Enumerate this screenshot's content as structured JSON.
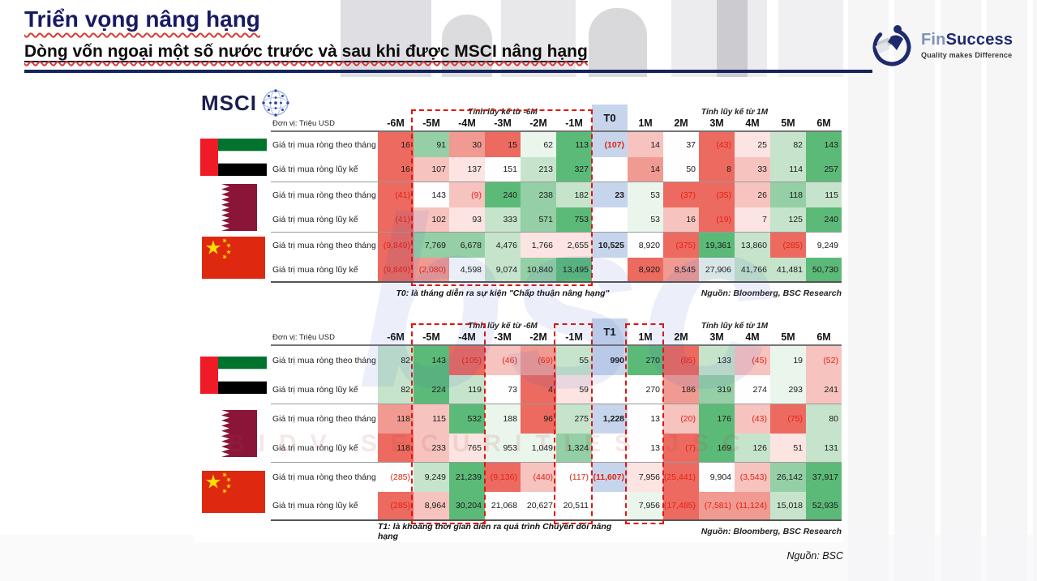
{
  "header": {
    "title": "Triển vọng nâng hạng",
    "subtitle": "Dòng vốn ngoại một số nước trước và sau khi được MSCI nâng hạng"
  },
  "brand": {
    "fin": "Fin",
    "success": "Success",
    "tagline": "Quality makes Difference"
  },
  "msci_logo_text": "MSCI",
  "watermarks": {
    "big": "bsc",
    "band": "BIDV SECURITIES JSC"
  },
  "slide_source": "Nguồn: BSC",
  "palette": {
    "R3": "#ec6a60",
    "R2": "#f09a92",
    "R1": "#f7c3bf",
    "R0": "#fbe4e2",
    "W": "#fdfefd",
    "G0": "#eaf5ec",
    "G1": "#c6e4cc",
    "G2": "#94cfa5",
    "G3": "#5cba78",
    "B": "#c7d5ec"
  },
  "tables": [
    {
      "id": "t0",
      "unit_label": "Đơn vị: Triệu USD",
      "group_left_label": "Tính lũy kế từ -6M",
      "group_right_label": "Tính lũy kế từ 1M",
      "columns": [
        "-6M",
        "-5M",
        "-4M",
        "-3M",
        "-2M",
        "-1M",
        "T0",
        "1M",
        "2M",
        "3M",
        "4M",
        "5M",
        "6M"
      ],
      "event_col_index": 6,
      "footnote": "T0: là tháng diễn ra sự kiện \"Chấp thuận nâng hạng\"",
      "source": "Nguồn: Bloomberg, BSC Research",
      "dash_boxes": [
        [
          1,
          5
        ]
      ],
      "countries": [
        {
          "name": "UAE",
          "flag": "uae",
          "rows": [
            {
              "label": "Giá trị mua ròng theo tháng",
              "cells": [
                [
                  "16",
                  "R3"
                ],
                [
                  "91",
                  "G2"
                ],
                [
                  "30",
                  "R2"
                ],
                [
                  "15",
                  "R3"
                ],
                [
                  "62",
                  "G0"
                ],
                [
                  "113",
                  "G3"
                ],
                [
                  "(107)",
                  "B"
                ],
                [
                  "14",
                  "R1"
                ],
                [
                  "37",
                  "W"
                ],
                [
                  "(43)",
                  "R3"
                ],
                [
                  "25",
                  "R0"
                ],
                [
                  "82",
                  "G1"
                ],
                [
                  "143",
                  "G3"
                ]
              ]
            },
            {
              "label": "Giá trị mua ròng lũy kế",
              "cells": [
                [
                  "16",
                  "R3"
                ],
                [
                  "107",
                  "R1"
                ],
                [
                  "137",
                  "R0"
                ],
                [
                  "151",
                  "W"
                ],
                [
                  "213",
                  "G1"
                ],
                [
                  "327",
                  "G3"
                ],
                [
                  "",
                  "W"
                ],
                [
                  "14",
                  "R2"
                ],
                [
                  "50",
                  "W"
                ],
                [
                  "8",
                  "R3"
                ],
                [
                  "33",
                  "R1"
                ],
                [
                  "114",
                  "G1"
                ],
                [
                  "257",
                  "G3"
                ]
              ]
            }
          ]
        },
        {
          "name": "Qatar",
          "flag": "qatar",
          "rows": [
            {
              "label": "Giá trị mua ròng theo tháng",
              "cells": [
                [
                  "(41)",
                  "R3"
                ],
                [
                  "143",
                  "W"
                ],
                [
                  "(9)",
                  "R1"
                ],
                [
                  "240",
                  "G3"
                ],
                [
                  "238",
                  "G2"
                ],
                [
                  "182",
                  "G1"
                ],
                [
                  "23",
                  "B"
                ],
                [
                  "53",
                  "G0"
                ],
                [
                  "(37)",
                  "R3"
                ],
                [
                  "(35)",
                  "R3"
                ],
                [
                  "26",
                  "R1"
                ],
                [
                  "118",
                  "G2"
                ],
                [
                  "115",
                  "G1"
                ]
              ]
            },
            {
              "label": "Giá trị mua ròng lũy kế",
              "cells": [
                [
                  "(41)",
                  "R3"
                ],
                [
                  "102",
                  "R1"
                ],
                [
                  "93",
                  "R0"
                ],
                [
                  "333",
                  "G1"
                ],
                [
                  "571",
                  "G2"
                ],
                [
                  "753",
                  "G3"
                ],
                [
                  "",
                  "W"
                ],
                [
                  "53",
                  "G0"
                ],
                [
                  "16",
                  "R1"
                ],
                [
                  "(19)",
                  "R3"
                ],
                [
                  "7",
                  "R0"
                ],
                [
                  "125",
                  "G1"
                ],
                [
                  "240",
                  "G3"
                ]
              ]
            }
          ]
        },
        {
          "name": "China",
          "flag": "china",
          "rows": [
            {
              "label": "Giá trị mua ròng theo tháng",
              "cells": [
                [
                  "(9,849)",
                  "R3"
                ],
                [
                  "7,769",
                  "G2"
                ],
                [
                  "6,678",
                  "G2"
                ],
                [
                  "4,476",
                  "G1"
                ],
                [
                  "1,766",
                  "R0"
                ],
                [
                  "2,655",
                  "R0"
                ],
                [
                  "10,525",
                  "B"
                ],
                [
                  "8,920",
                  "W"
                ],
                [
                  "(375)",
                  "R3"
                ],
                [
                  "19,361",
                  "G3"
                ],
                [
                  "13,860",
                  "G1"
                ],
                [
                  "(285)",
                  "R3"
                ],
                [
                  "9,249",
                  "W"
                ]
              ]
            },
            {
              "label": "Giá trị mua ròng lũy kế",
              "cells": [
                [
                  "(9,849)",
                  "R3"
                ],
                [
                  "(2,080)",
                  "R2"
                ],
                [
                  "4,598",
                  "W"
                ],
                [
                  "9,074",
                  "G1"
                ],
                [
                  "10,840",
                  "G2"
                ],
                [
                  "13,495",
                  "G3"
                ],
                [
                  "",
                  "W"
                ],
                [
                  "8,920",
                  "R3"
                ],
                [
                  "8,545",
                  "R2"
                ],
                [
                  "27,906",
                  "G0"
                ],
                [
                  "41,766",
                  "G1"
                ],
                [
                  "41,481",
                  "G1"
                ],
                [
                  "50,730",
                  "G3"
                ]
              ]
            }
          ]
        }
      ]
    },
    {
      "id": "t1",
      "unit_label": "Đơn vị: Triệu USD",
      "group_left_label": "Tính lũy kế từ -6M",
      "group_right_label": "Tính lũy kế từ 1M",
      "columns": [
        "-6M",
        "-5M",
        "-4M",
        "-3M",
        "-2M",
        "-1M",
        "T1",
        "1M",
        "2M",
        "3M",
        "4M",
        "5M",
        "6M"
      ],
      "event_col_index": 6,
      "footnote": "T1: là khoảng thời gian diễn ra quá trình Chuyển đổi nâng hạng",
      "source": "Nguồn: Bloomberg, BSC Research",
      "dash_boxes": [
        [
          1,
          2
        ],
        [
          5,
          5
        ],
        [
          7,
          7
        ]
      ],
      "countries": [
        {
          "name": "UAE",
          "flag": "uae",
          "rows": [
            {
              "label": "Giá trị mua ròng theo tháng",
              "cells": [
                [
                  "82",
                  "G1"
                ],
                [
                  "143",
                  "G3"
                ],
                [
                  "(105)",
                  "R3"
                ],
                [
                  "(46)",
                  "R1"
                ],
                [
                  "(69)",
                  "R2"
                ],
                [
                  "55",
                  "G1"
                ],
                [
                  "990",
                  "B"
                ],
                [
                  "270",
                  "G3"
                ],
                [
                  "(85)",
                  "R3"
                ],
                [
                  "133",
                  "G1"
                ],
                [
                  "(45)",
                  "R1"
                ],
                [
                  "19",
                  "G0"
                ],
                [
                  "(52)",
                  "R1"
                ]
              ]
            },
            {
              "label": "Giá trị mua ròng lũy kế",
              "cells": [
                [
                  "82",
                  "G1"
                ],
                [
                  "224",
                  "G3"
                ],
                [
                  "119",
                  "G1"
                ],
                [
                  "73",
                  "W"
                ],
                [
                  "4",
                  "R3"
                ],
                [
                  "59",
                  "R0"
                ],
                [
                  "",
                  "W"
                ],
                [
                  "270",
                  "W"
                ],
                [
                  "186",
                  "R2"
                ],
                [
                  "319",
                  "G2"
                ],
                [
                  "274",
                  "W"
                ],
                [
                  "293",
                  "G0"
                ],
                [
                  "241",
                  "R1"
                ]
              ]
            }
          ]
        },
        {
          "name": "Qatar",
          "flag": "qatar",
          "rows": [
            {
              "label": "Giá trị mua ròng theo tháng",
              "cells": [
                [
                  "118",
                  "R2"
                ],
                [
                  "115",
                  "R1"
                ],
                [
                  "532",
                  "G3"
                ],
                [
                  "188",
                  "G0"
                ],
                [
                  "96",
                  "R3"
                ],
                [
                  "275",
                  "G1"
                ],
                [
                  "1,228",
                  "B"
                ],
                [
                  "13",
                  "W"
                ],
                [
                  "(20)",
                  "R1"
                ],
                [
                  "176",
                  "G3"
                ],
                [
                  "(43)",
                  "R1"
                ],
                [
                  "(75)",
                  "R3"
                ],
                [
                  "80",
                  "G1"
                ]
              ]
            },
            {
              "label": "Giá trị mua ròng lũy kế",
              "cells": [
                [
                  "118",
                  "R3"
                ],
                [
                  "233",
                  "R1"
                ],
                [
                  "765",
                  "R0"
                ],
                [
                  "953",
                  "G0"
                ],
                [
                  "1,049",
                  "G0"
                ],
                [
                  "1,324",
                  "G2"
                ],
                [
                  "",
                  "W"
                ],
                [
                  "13",
                  "W"
                ],
                [
                  "(7)",
                  "R3"
                ],
                [
                  "169",
                  "G3"
                ],
                [
                  "126",
                  "G1"
                ],
                [
                  "51",
                  "R0"
                ],
                [
                  "131",
                  "G1"
                ]
              ]
            }
          ]
        },
        {
          "name": "China",
          "flag": "china",
          "rows": [
            {
              "label": "Giá trị mua ròng theo tháng",
              "cells": [
                [
                  "(285)",
                  "W"
                ],
                [
                  "9,249",
                  "G1"
                ],
                [
                  "21,239",
                  "G3"
                ],
                [
                  "(9,136)",
                  "R3"
                ],
                [
                  "(440)",
                  "R1"
                ],
                [
                  "(117)",
                  "W"
                ],
                [
                  "(11,607)",
                  "B"
                ],
                [
                  "7,956",
                  "R0"
                ],
                [
                  "(25,441)",
                  "R3"
                ],
                [
                  "9,904",
                  "W"
                ],
                [
                  "(3,543)",
                  "R1"
                ],
                [
                  "26,142",
                  "G2"
                ],
                [
                  "37,917",
                  "G3"
                ]
              ]
            },
            {
              "label": "Giá trị mua ròng lũy kế",
              "cells": [
                [
                  "(285)",
                  "R3"
                ],
                [
                  "8,964",
                  "R1"
                ],
                [
                  "30,204",
                  "G3"
                ],
                [
                  "21,068",
                  "W"
                ],
                [
                  "20,627",
                  "W"
                ],
                [
                  "20,511",
                  "W"
                ],
                [
                  "",
                  "W"
                ],
                [
                  "7,956",
                  "G0"
                ],
                [
                  "(17,485)",
                  "R3"
                ],
                [
                  "(7,581)",
                  "R2"
                ],
                [
                  "(11,124)",
                  "R2"
                ],
                [
                  "15,018",
                  "G1"
                ],
                [
                  "52,935",
                  "G3"
                ]
              ]
            }
          ]
        }
      ]
    }
  ]
}
